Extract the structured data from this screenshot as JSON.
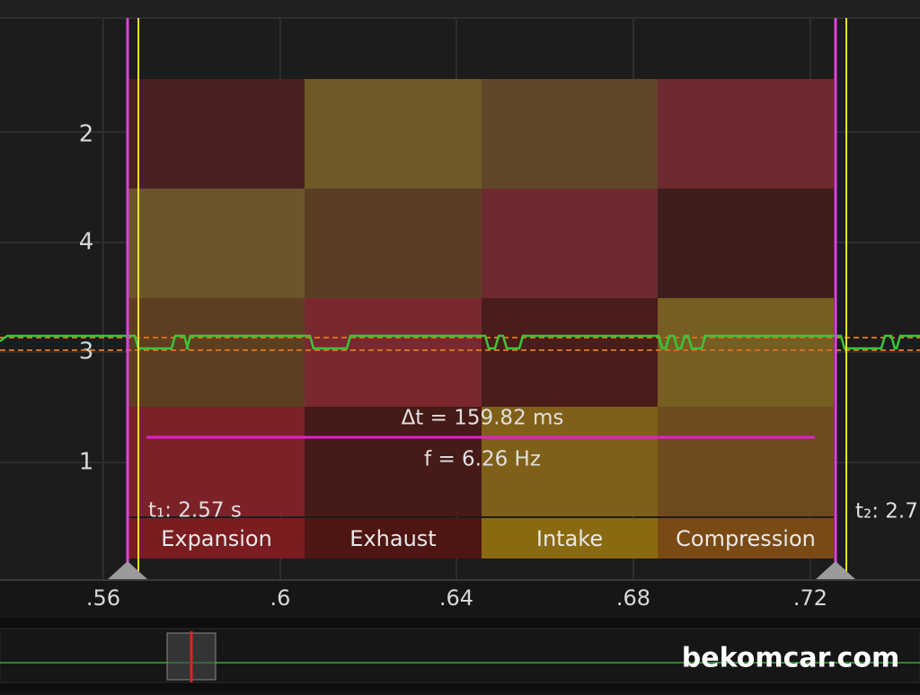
{
  "y_labels": [
    "2",
    "4",
    "3",
    "1"
  ],
  "x_ticks": [
    ".56",
    ".6",
    ".64",
    ".68",
    ".72"
  ],
  "cell_colors": [
    [
      "#4a2020",
      "#6e5a28",
      "#5e4628",
      "#6e2a2e"
    ],
    [
      "#6a5628",
      "#5a3e24",
      "#6e2a30",
      "#3e1e1c"
    ],
    [
      "#5e3e20",
      "#7a2830",
      "#4a1c1a",
      "#765e22"
    ],
    [
      "#7a2228",
      "#461a16",
      "#806018",
      "#6e4a1e"
    ]
  ],
  "strokes": [
    {
      "name": "Expansion",
      "color": "#7a1c20"
    },
    {
      "name": "Exhaust",
      "color": "#4e1612"
    },
    {
      "name": "Intake",
      "color": "#8a6a10"
    },
    {
      "name": "Compression",
      "color": "#7a4a14"
    }
  ],
  "cursor1_label": "t₁: 2.57 s",
  "cursor2_label": "t₂: 2.7",
  "delta_t": "Δt = 159.82 ms",
  "frequency": "f = 6.26 Hz",
  "watermark": "bekomcar.com"
}
